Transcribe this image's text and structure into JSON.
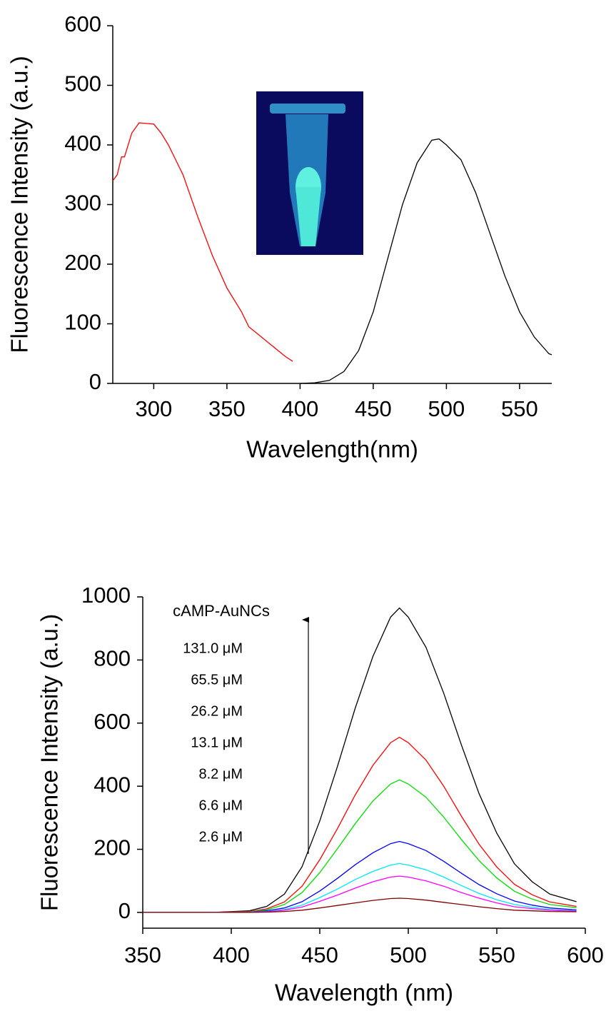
{
  "chart_data": [
    {
      "type": "line",
      "xlabel": "Wavelength(nm)",
      "ylabel": "Fluorescence Intensity (a.u.)",
      "xlim": [
        272,
        572
      ],
      "ylim": [
        0,
        600
      ],
      "xticks": [
        300,
        350,
        400,
        450,
        500,
        550
      ],
      "yticks": [
        0,
        100,
        200,
        300,
        400,
        500,
        600
      ],
      "series": [
        {
          "color": "#ff0000",
          "x": [
            272,
            275,
            278,
            280,
            285,
            290,
            295,
            300,
            305,
            310,
            320,
            330,
            340,
            350,
            360,
            365,
            370,
            380,
            390,
            395
          ],
          "values": [
            340,
            350,
            380,
            380,
            420,
            437,
            436,
            435,
            420,
            400,
            350,
            280,
            215,
            160,
            120,
            95,
            85,
            65,
            45,
            37
          ]
        },
        {
          "color": "#000000",
          "x": [
            400,
            410,
            420,
            430,
            440,
            450,
            460,
            470,
            480,
            490,
            495,
            500,
            510,
            520,
            530,
            540,
            550,
            560,
            570,
            572
          ],
          "values": [
            0,
            1,
            5,
            20,
            55,
            120,
            210,
            300,
            370,
            408,
            410,
            400,
            375,
            320,
            250,
            180,
            120,
            78,
            50,
            48
          ]
        }
      ]
    },
    {
      "type": "line",
      "xlabel": "Wavelength (nm)",
      "ylabel": "Fluorescence Intensity (a.u.)",
      "annotation": "cAMP-AuNCs",
      "xlim": [
        350,
        600
      ],
      "ylim": [
        -50,
        1000
      ],
      "xticks": [
        350,
        400,
        450,
        500,
        550,
        600
      ],
      "yticks": [
        0,
        200,
        400,
        600,
        800,
        1000
      ],
      "x": [
        350,
        370,
        390,
        410,
        420,
        430,
        440,
        450,
        460,
        470,
        480,
        490,
        495,
        500,
        510,
        520,
        530,
        540,
        550,
        560,
        570,
        580,
        595
      ],
      "series": [
        {
          "name": "131.0  μM",
          "color": "#000000",
          "values": [
            0,
            0,
            0,
            5,
            19,
            58,
            145,
            290,
            463,
            647,
            811,
            936,
            965,
            936,
            840,
            695,
            531,
            376,
            251,
            154,
            97,
            58,
            34
          ]
        },
        {
          "name": "65.5  μM",
          "color": "#ff0000",
          "values": [
            0,
            0,
            0,
            3,
            11,
            33,
            83,
            167,
            266,
            372,
            466,
            538,
            555,
            538,
            483,
            400,
            305,
            216,
            144,
            89,
            56,
            33,
            19
          ]
        },
        {
          "name": "26.2  μM",
          "color": "#00dd00",
          "values": [
            0,
            0,
            0,
            2,
            8,
            25,
            63,
            126,
            202,
            281,
            353,
            407,
            420,
            407,
            365,
            302,
            231,
            164,
            109,
            67,
            42,
            25,
            15
          ]
        },
        {
          "name": "13.1  μM",
          "color": "#0000ff",
          "values": [
            0,
            0,
            0,
            1,
            5,
            14,
            34,
            68,
            108,
            151,
            189,
            218,
            225,
            218,
            196,
            162,
            124,
            88,
            59,
            36,
            23,
            14,
            8
          ]
        },
        {
          "name": "8.2  μM",
          "color": "#00e5ff",
          "values": [
            0,
            0,
            0,
            1,
            3,
            9,
            23,
            47,
            74,
            104,
            130,
            150,
            155,
            150,
            135,
            112,
            85,
            60,
            40,
            25,
            16,
            9,
            5
          ]
        },
        {
          "name": "6.6  μM",
          "color": "#ff00ff",
          "values": [
            0,
            0,
            0,
            1,
            2,
            7,
            17,
            35,
            55,
            77,
            97,
            112,
            115,
            112,
            100,
            83,
            63,
            45,
            30,
            18,
            12,
            7,
            4
          ]
        },
        {
          "name": "2.6  μM",
          "color": "#800000",
          "values": [
            0,
            0,
            0,
            0,
            1,
            3,
            7,
            14,
            22,
            30,
            38,
            44,
            45,
            44,
            39,
            32,
            25,
            18,
            12,
            7,
            5,
            3,
            2
          ]
        }
      ]
    }
  ]
}
